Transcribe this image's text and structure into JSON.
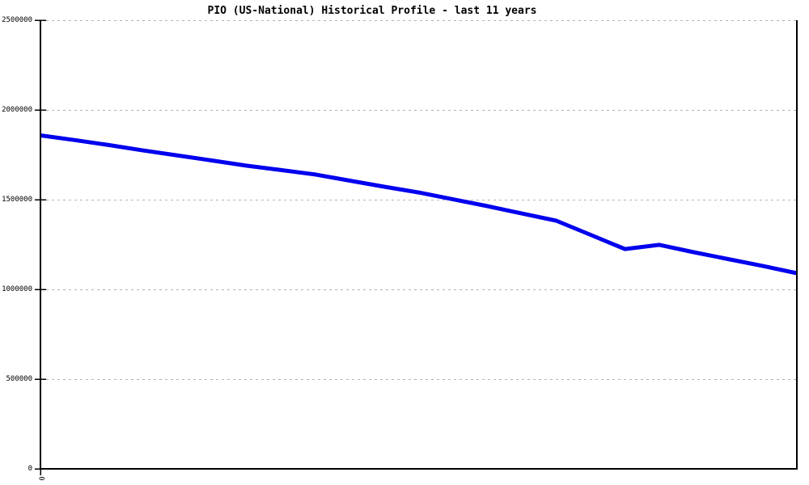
{
  "chart_data": {
    "type": "line",
    "title": "PIO (US-National) Historical Profile - last 11 years",
    "xlabel": "",
    "ylabel": "",
    "ylim": [
      0,
      2500000
    ],
    "y_ticks": [
      0,
      500000,
      1000000,
      1500000,
      2000000,
      2500000
    ],
    "y_tick_labels": [
      "0",
      "500000",
      "1000000",
      "1500000",
      "2000000",
      "2500000"
    ],
    "x_visible_tick_labels": [
      "0"
    ],
    "grid": "horizontal-dashed",
    "legend": "none",
    "series": [
      {
        "name": "PIO (US-National)",
        "color": "#0000ee",
        "x_index": [
          0,
          1,
          2,
          3,
          4,
          5,
          6,
          7,
          8,
          9,
          10,
          11,
          12,
          13,
          14,
          15,
          16,
          17,
          18,
          19,
          20,
          21,
          22
        ],
        "values": [
          1858000,
          1832000,
          1804000,
          1774000,
          1746000,
          1718000,
          1689000,
          1665000,
          1640000,
          1606000,
          1572000,
          1540000,
          1502000,
          1464000,
          1423000,
          1383000,
          1304000,
          1225000,
          1248000,
          1207000,
          1169000,
          1131000,
          1090000
        ]
      }
    ],
    "colors": {
      "line": "#0000ee",
      "grid": "#b3b3b3",
      "axis": "#000000",
      "text": "#000000",
      "background": "#ffffff"
    }
  }
}
